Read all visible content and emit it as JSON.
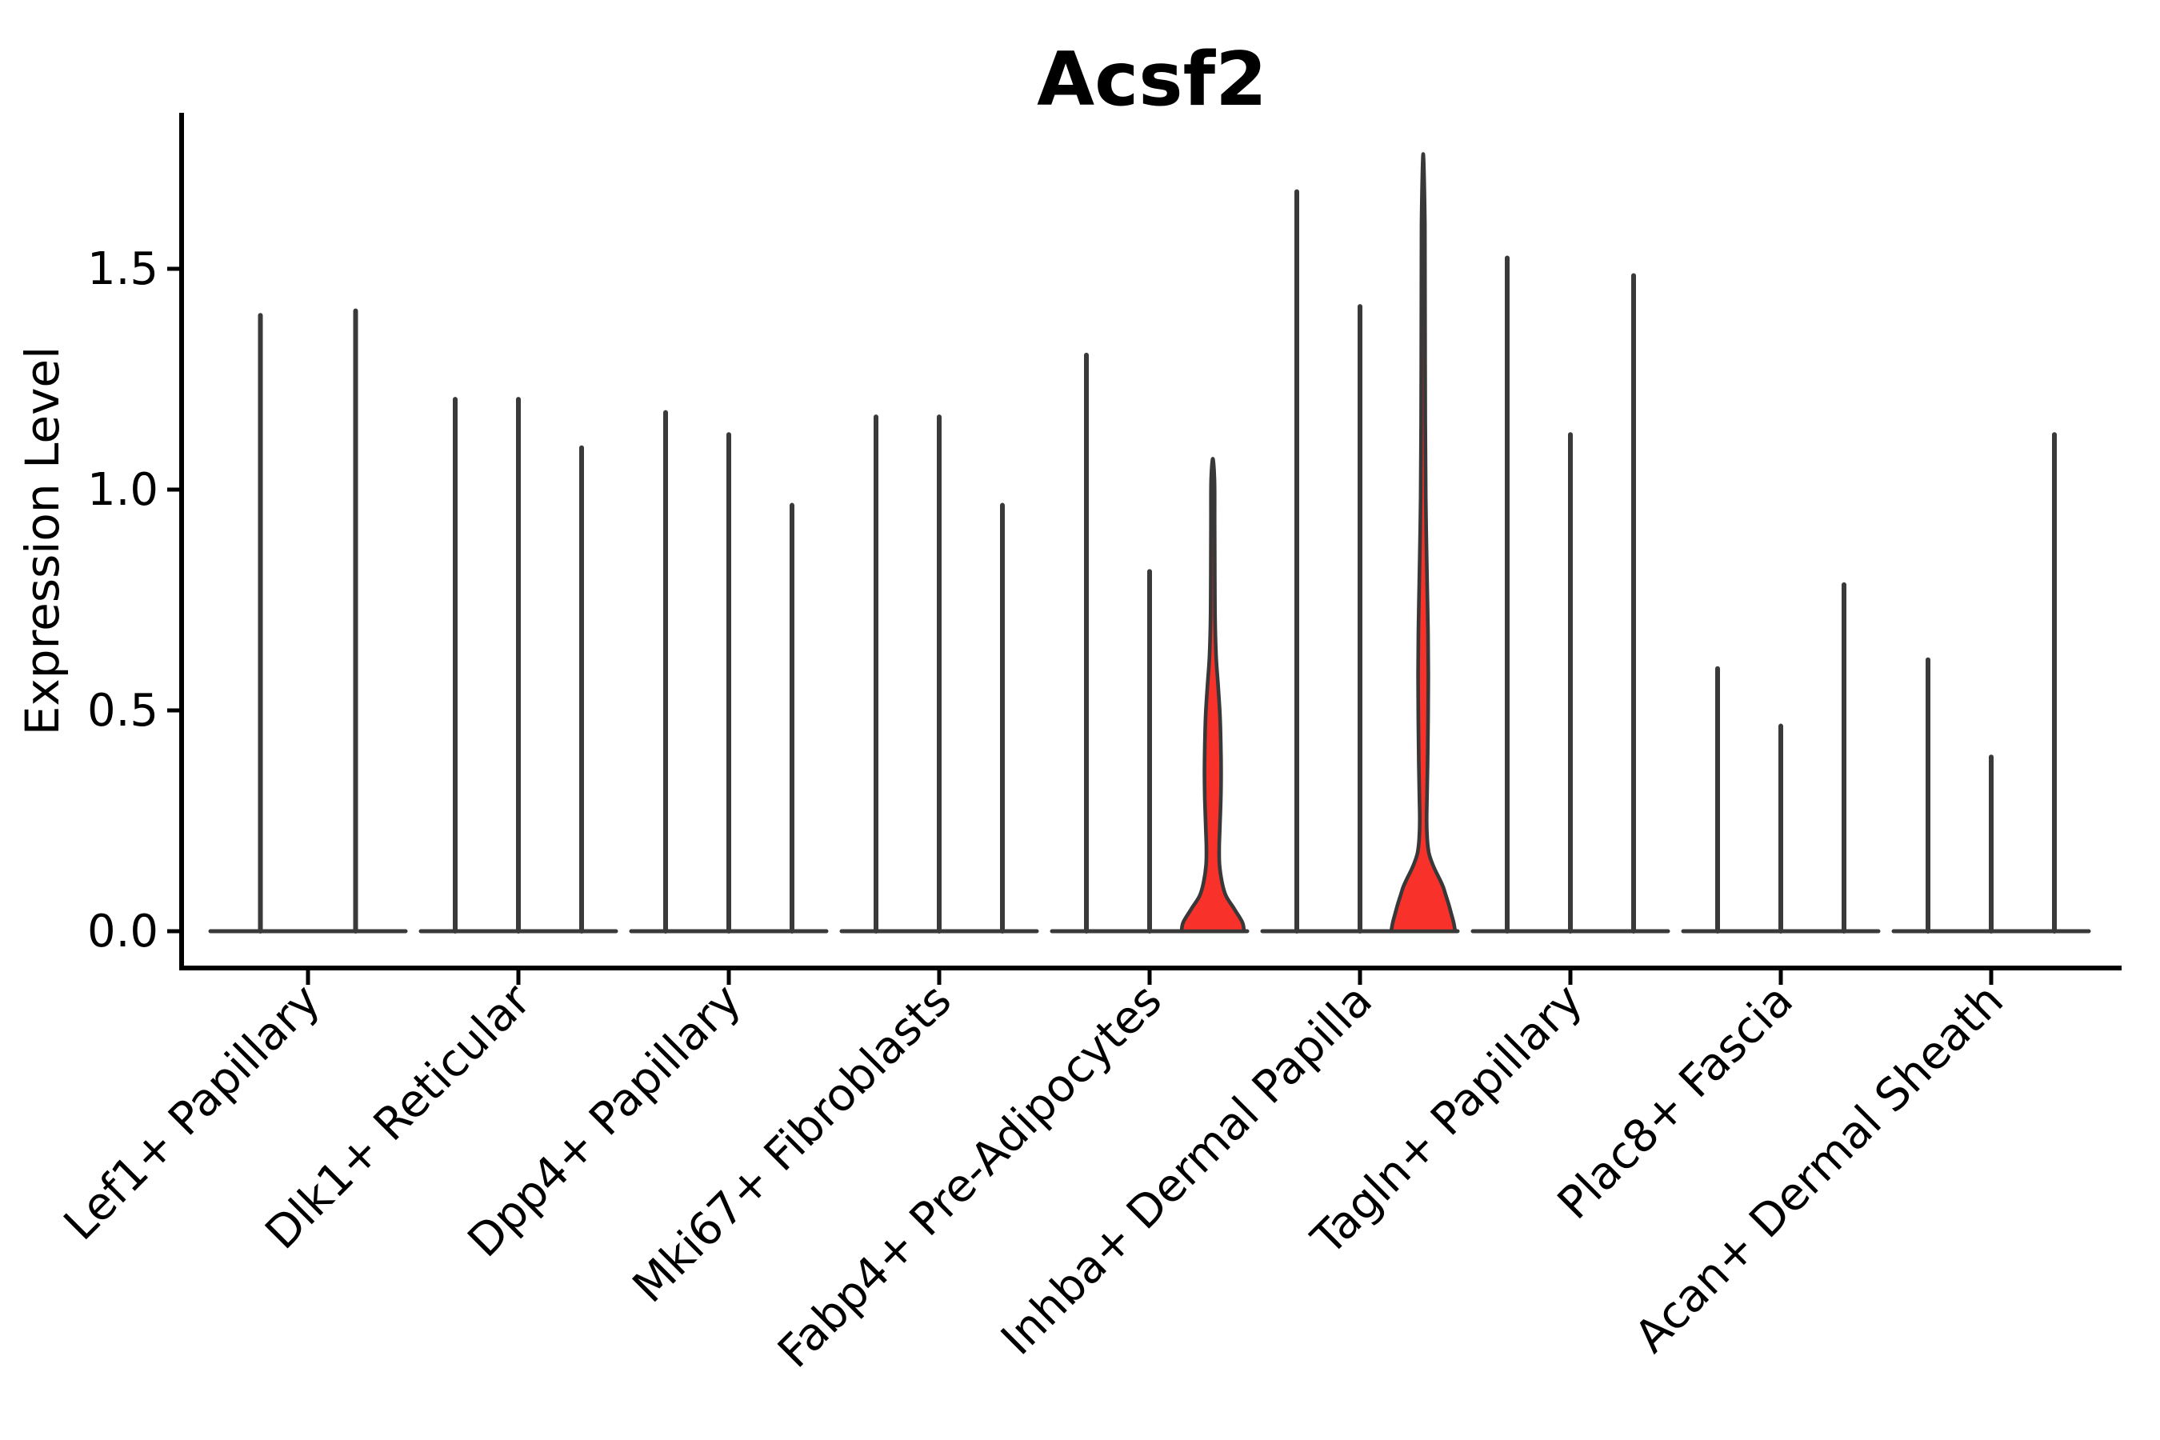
{
  "chart_data": {
    "type": "violin",
    "title": "Acsf2",
    "ylabel": "Expression Level",
    "xlabel": "",
    "ylim": [
      0,
      1.85
    ],
    "yticks": [
      0.0,
      0.5,
      1.0,
      1.5
    ],
    "ytick_labels": [
      "0.0",
      "0.5",
      "1.0",
      "1.5"
    ],
    "legend": "none",
    "grid": false,
    "groups": [
      {
        "category": "Lef1+ Papillary",
        "violins": [
          {
            "max": 1.4,
            "highlight": false
          },
          {
            "max": 1.41,
            "highlight": false
          }
        ]
      },
      {
        "category": "Dlk1+ Reticular",
        "violins": [
          {
            "max": 1.21,
            "highlight": false
          },
          {
            "max": 1.21,
            "highlight": false
          },
          {
            "max": 1.1,
            "highlight": false
          }
        ]
      },
      {
        "category": "Dpp4+ Papillary",
        "violins": [
          {
            "max": 1.18,
            "highlight": false
          },
          {
            "max": 1.13,
            "highlight": false
          },
          {
            "max": 0.97,
            "highlight": false
          }
        ]
      },
      {
        "category": "Mki67+ Fibroblasts",
        "violins": [
          {
            "max": 1.17,
            "highlight": false
          },
          {
            "max": 1.17,
            "highlight": false
          },
          {
            "max": 0.97,
            "highlight": false
          }
        ]
      },
      {
        "category": "Fabp4+ Pre-Adipocytes",
        "violins": [
          {
            "max": 1.31,
            "highlight": false
          },
          {
            "max": 0.82,
            "highlight": false
          },
          {
            "max": 1.07,
            "highlight": true,
            "profile": [
              [
                0.0,
                39
              ],
              [
                0.02,
                37
              ],
              [
                0.05,
                27
              ],
              [
                0.08,
                16.5
              ],
              [
                0.11,
                11.6
              ],
              [
                0.15,
                8.4
              ],
              [
                0.19,
                8.0
              ],
              [
                0.24,
                8.9
              ],
              [
                0.3,
                10.0
              ],
              [
                0.36,
                10.4
              ],
              [
                0.42,
                10.0
              ],
              [
                0.49,
                8.9
              ],
              [
                0.56,
                6.5
              ],
              [
                0.62,
                4.2
              ],
              [
                0.7,
                2.9
              ],
              [
                0.8,
                2.5
              ],
              [
                0.92,
                2.3
              ],
              [
                1.02,
                2.1
              ],
              [
                1.07,
                0
              ]
            ]
          }
        ]
      },
      {
        "category": "Inhba+ Dermal Papilla",
        "violins": [
          {
            "max": 1.68,
            "highlight": false
          },
          {
            "max": 1.42,
            "highlight": false
          },
          {
            "max": 1.76,
            "highlight": true,
            "profile": [
              [
                0.0,
                40
              ],
              [
                0.02,
                38
              ],
              [
                0.04,
                35
              ],
              [
                0.06,
                32
              ],
              [
                0.08,
                28.5
              ],
              [
                0.1,
                25
              ],
              [
                0.12,
                20
              ],
              [
                0.14,
                14.5
              ],
              [
                0.16,
                10
              ],
              [
                0.18,
                6.8
              ],
              [
                0.21,
                5.0
              ],
              [
                0.25,
                4.3
              ],
              [
                0.3,
                4.7
              ],
              [
                0.38,
                5.5
              ],
              [
                0.48,
                6.1
              ],
              [
                0.58,
                6.4
              ],
              [
                0.68,
                6.0
              ],
              [
                0.78,
                5.0
              ],
              [
                0.88,
                4.0
              ],
              [
                0.98,
                3.2
              ],
              [
                1.15,
                2.6
              ],
              [
                1.4,
                2.3
              ],
              [
                1.6,
                2.1
              ],
              [
                1.76,
                0
              ]
            ]
          }
        ]
      },
      {
        "category": "Tagln+ Papillary",
        "violins": [
          {
            "max": 1.53,
            "highlight": false
          },
          {
            "max": 1.13,
            "highlight": false
          },
          {
            "max": 1.49,
            "highlight": false
          }
        ]
      },
      {
        "category": "Plac8+ Fascia",
        "violins": [
          {
            "max": 0.6,
            "highlight": false
          },
          {
            "max": 0.47,
            "highlight": false
          },
          {
            "max": 0.79,
            "highlight": false
          }
        ]
      },
      {
        "category": "Acan+ Dermal Sheath",
        "violins": [
          {
            "max": 0.62,
            "highlight": false
          },
          {
            "max": 0.4,
            "highlight": false
          },
          {
            "max": 1.13,
            "highlight": false
          }
        ]
      }
    ]
  },
  "colors": {
    "violin_stroke": "#3a3a3a",
    "highlight_fill": "#f8322b",
    "highlight_stroke": "#383838",
    "axis": "#000000",
    "text": "#000000",
    "background": "#ffffff"
  }
}
